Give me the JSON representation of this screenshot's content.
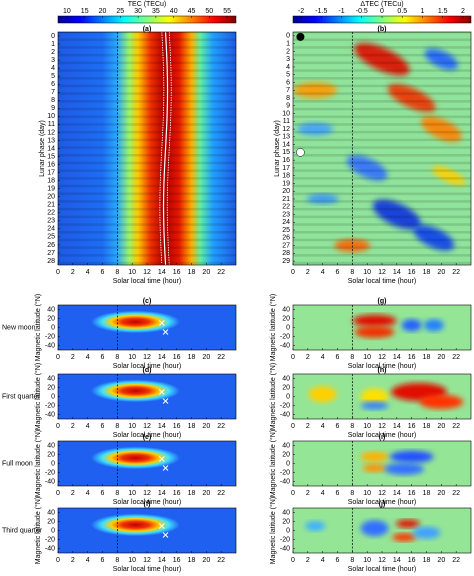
{
  "top_left": {
    "colorbar_label": "TEC (TECu)",
    "colorbar_ticks": [
      10,
      15,
      20,
      25,
      30,
      35,
      40,
      45,
      50,
      55
    ],
    "panel_label": "(a)",
    "y_label": "Lunar phase (day)",
    "y_ticks": [
      0,
      1,
      2,
      3,
      4,
      5,
      6,
      7,
      8,
      9,
      10,
      11,
      12,
      13,
      14,
      15,
      16,
      17,
      18,
      19,
      20,
      21,
      22,
      23,
      24,
      25,
      26,
      27,
      28
    ]
  },
  "top_right": {
    "colorbar_label": "ΔTEC (TECu)",
    "colorbar_ticks": [
      -2,
      -1.5,
      -1,
      -0.5,
      0,
      0.5,
      1,
      1.5,
      2
    ],
    "panel_label": "(b)",
    "y_label": "Lunar phase (day)",
    "y_ticks": [
      0,
      1,
      2,
      3,
      4,
      5,
      6,
      7,
      8,
      9,
      10,
      11,
      12,
      13,
      14,
      15,
      16,
      17,
      18,
      19,
      20,
      21,
      22,
      23,
      24,
      25,
      26,
      27,
      28,
      29
    ]
  },
  "x_ticks": [
    0,
    2,
    4,
    6,
    8,
    10,
    12,
    14,
    16,
    18,
    20,
    22
  ],
  "x_label": "Solar local time (hour)",
  "lat_label": "Magnetic latitude (°N)",
  "lat_ticks": [
    -40,
    -20,
    0,
    20,
    40
  ],
  "rows": [
    {
      "name": "New moon",
      "left_label": "(c)",
      "right_label": "(g)"
    },
    {
      "name": "First quarter",
      "left_label": "(d)",
      "right_label": "(h)"
    },
    {
      "name": "Full moon",
      "left_label": "(e)",
      "right_label": "(i)"
    },
    {
      "name": "Third quarter",
      "left_label": "(f)",
      "right_label": "(j)"
    }
  ]
}
